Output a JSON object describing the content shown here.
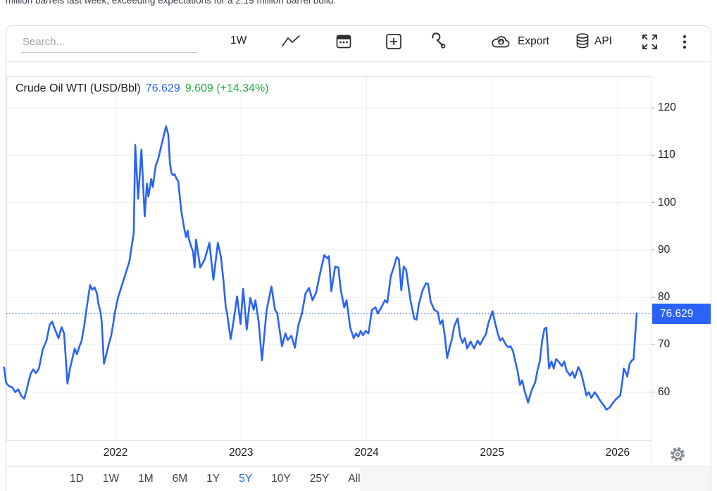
{
  "headline": {
    "text": "million barrels last week, exceeding expectations for a 2.19 million barrel build."
  },
  "toolbar": {
    "search_placeholder": "Search...",
    "interval_label": "1W",
    "export_label": "Export",
    "api_label": "API"
  },
  "chart_data": {
    "type": "line",
    "title": "Crude Oil WTI (USD/Bbl)",
    "price": "76.629",
    "change": "9.609",
    "change_pct": "(+14.34%)",
    "current_value": 76.629,
    "xlabel": "",
    "ylabel": "",
    "grid": true,
    "legend_position": "none",
    "x_ticks": [
      2022,
      2023,
      2024,
      2025,
      2026
    ],
    "y_ticks": [
      60,
      70,
      80,
      90,
      100,
      110,
      120
    ],
    "x_domain": [
      2021.13,
      2026.27
    ],
    "y_domain": [
      49.7,
      126.7
    ],
    "series": [
      {
        "name": "Crude Oil WTI",
        "points": [
          [
            2021.112,
            65.2
          ],
          [
            2021.128,
            62.0
          ],
          [
            2021.15,
            61.3
          ],
          [
            2021.178,
            61.0
          ],
          [
            2021.2,
            60.0
          ],
          [
            2021.225,
            60.6
          ],
          [
            2021.25,
            59.2
          ],
          [
            2021.272,
            58.6
          ],
          [
            2021.29,
            60.3
          ],
          [
            2021.305,
            62.0
          ],
          [
            2021.325,
            64.0
          ],
          [
            2021.345,
            64.8
          ],
          [
            2021.365,
            64.0
          ],
          [
            2021.39,
            65.0
          ],
          [
            2021.42,
            69.0
          ],
          [
            2021.45,
            70.9
          ],
          [
            2021.475,
            74.2
          ],
          [
            2021.495,
            74.9
          ],
          [
            2021.515,
            73.4
          ],
          [
            2021.545,
            71.4
          ],
          [
            2021.57,
            73.7
          ],
          [
            2021.59,
            72.4
          ],
          [
            2021.617,
            61.8
          ],
          [
            2021.637,
            65.0
          ],
          [
            2021.655,
            67.0
          ],
          [
            2021.675,
            69.2
          ],
          [
            2021.692,
            68.0
          ],
          [
            2021.71,
            69.5
          ],
          [
            2021.73,
            70.9
          ],
          [
            2021.75,
            73.9
          ],
          [
            2021.768,
            77.4
          ],
          [
            2021.787,
            80.8
          ],
          [
            2021.797,
            82.6
          ],
          [
            2021.815,
            81.6
          ],
          [
            2021.833,
            82.1
          ],
          [
            2021.852,
            80.8
          ],
          [
            2021.862,
            78.9
          ],
          [
            2021.88,
            76.9
          ],
          [
            2021.89,
            74.9
          ],
          [
            2021.908,
            66.0
          ],
          [
            2021.927,
            68.0
          ],
          [
            2021.945,
            70.0
          ],
          [
            2021.965,
            71.9
          ],
          [
            2021.983,
            74.7
          ],
          [
            2021.993,
            76.6
          ],
          [
            2022.02,
            80.0
          ],
          [
            2022.05,
            82.5
          ],
          [
            2022.08,
            85.0
          ],
          [
            2022.11,
            87.5
          ],
          [
            2022.13,
            91.0
          ],
          [
            2022.145,
            93.6
          ],
          [
            2022.157,
            112.2
          ],
          [
            2022.18,
            100.8
          ],
          [
            2022.206,
            111.2
          ],
          [
            2022.232,
            97.1
          ],
          [
            2022.25,
            104.0
          ],
          [
            2022.262,
            101.3
          ],
          [
            2022.285,
            105.0
          ],
          [
            2022.297,
            103.3
          ],
          [
            2022.32,
            107.8
          ],
          [
            2022.34,
            109.2
          ],
          [
            2022.36,
            111.5
          ],
          [
            2022.378,
            113.4
          ],
          [
            2022.402,
            116.1
          ],
          [
            2022.42,
            114.4
          ],
          [
            2022.433,
            108.5
          ],
          [
            2022.445,
            106.3
          ],
          [
            2022.458,
            105.8
          ],
          [
            2022.47,
            106.0
          ],
          [
            2022.487,
            105.0
          ],
          [
            2022.5,
            104.5
          ],
          [
            2022.518,
            99.6
          ],
          [
            2022.528,
            97.6
          ],
          [
            2022.547,
            94.6
          ],
          [
            2022.562,
            92.7
          ],
          [
            2022.575,
            94.1
          ],
          [
            2022.585,
            92.2
          ],
          [
            2022.603,
            90.7
          ],
          [
            2022.617,
            89.7
          ],
          [
            2022.63,
            86.3
          ],
          [
            2022.641,
            92.2
          ],
          [
            2022.675,
            86.3
          ],
          [
            2022.71,
            88.0
          ],
          [
            2022.748,
            91.5
          ],
          [
            2022.78,
            83.7
          ],
          [
            2022.815,
            91.5
          ],
          [
            2022.84,
            88.5
          ],
          [
            2022.86,
            83.5
          ],
          [
            2022.878,
            78.0
          ],
          [
            2022.89,
            76.5
          ],
          [
            2022.905,
            73.5
          ],
          [
            2022.917,
            71.2
          ],
          [
            2022.94,
            75.0
          ],
          [
            2022.968,
            80.2
          ],
          [
            2022.996,
            74.4
          ],
          [
            2023.017,
            81.8
          ],
          [
            2023.045,
            73.2
          ],
          [
            2023.073,
            79.9
          ],
          [
            2023.1,
            77.4
          ],
          [
            2023.114,
            79.4
          ],
          [
            2023.14,
            74.9
          ],
          [
            2023.167,
            66.7
          ],
          [
            2023.204,
            77.4
          ],
          [
            2023.242,
            82.3
          ],
          [
            2023.27,
            77.4
          ],
          [
            2023.288,
            76.7
          ],
          [
            2023.326,
            69.7
          ],
          [
            2023.354,
            72.4
          ],
          [
            2023.372,
            71.0
          ],
          [
            2023.401,
            71.9
          ],
          [
            2023.429,
            69.4
          ],
          [
            2023.457,
            74.2
          ],
          [
            2023.485,
            76.6
          ],
          [
            2023.513,
            80.8
          ],
          [
            2023.541,
            82.0
          ],
          [
            2023.57,
            79.4
          ],
          [
            2023.598,
            81.0
          ],
          [
            2023.635,
            85.7
          ],
          [
            2023.663,
            88.9
          ],
          [
            2023.691,
            88.2
          ],
          [
            2023.7,
            88.7
          ],
          [
            2023.719,
            81.3
          ],
          [
            2023.75,
            86.5
          ],
          [
            2023.775,
            86.3
          ],
          [
            2023.794,
            81.6
          ],
          [
            2023.822,
            77.9
          ],
          [
            2023.841,
            79.4
          ],
          [
            2023.869,
            73.7
          ],
          [
            2023.897,
            71.4
          ],
          [
            2023.916,
            72.4
          ],
          [
            2023.934,
            71.7
          ],
          [
            2023.953,
            72.9
          ],
          [
            2023.972,
            72.0
          ],
          [
            2023.991,
            72.9
          ],
          [
            2024.015,
            72.4
          ],
          [
            2024.043,
            77.4
          ],
          [
            2024.071,
            77.9
          ],
          [
            2024.09,
            76.6
          ],
          [
            2024.118,
            77.9
          ],
          [
            2024.146,
            79.4
          ],
          [
            2024.165,
            78.9
          ],
          [
            2024.193,
            84.5
          ],
          [
            2024.221,
            86.7
          ],
          [
            2024.24,
            88.5
          ],
          [
            2024.258,
            88.0
          ],
          [
            2024.277,
            81.5
          ],
          [
            2024.296,
            86.5
          ],
          [
            2024.315,
            85.8
          ],
          [
            2024.35,
            79.4
          ],
          [
            2024.38,
            75.5
          ],
          [
            2024.398,
            75.3
          ],
          [
            2024.416,
            78.5
          ],
          [
            2024.445,
            81.4
          ],
          [
            2024.474,
            83.0
          ],
          [
            2024.49,
            82.8
          ],
          [
            2024.511,
            79.1
          ],
          [
            2024.539,
            77.4
          ],
          [
            2024.567,
            76.9
          ],
          [
            2024.586,
            74.4
          ],
          [
            2024.605,
            75.2
          ],
          [
            2024.623,
            71.9
          ],
          [
            2024.642,
            67.2
          ],
          [
            2024.661,
            69.4
          ],
          [
            2024.68,
            71.2
          ],
          [
            2024.698,
            73.9
          ],
          [
            2024.726,
            75.6
          ],
          [
            2024.745,
            71.9
          ],
          [
            2024.764,
            70.4
          ],
          [
            2024.783,
            71.4
          ],
          [
            2024.801,
            69.2
          ],
          [
            2024.829,
            70.7
          ],
          [
            2024.857,
            69.2
          ],
          [
            2024.885,
            70.9
          ],
          [
            2024.904,
            70.0
          ],
          [
            2024.932,
            71.4
          ],
          [
            2024.951,
            72.2
          ],
          [
            2024.969,
            74.4
          ],
          [
            2024.988,
            75.9
          ],
          [
            2025.003,
            77.1
          ],
          [
            2025.026,
            74.4
          ],
          [
            2025.045,
            72.4
          ],
          [
            2025.063,
            70.9
          ],
          [
            2025.082,
            71.4
          ],
          [
            2025.11,
            70.0
          ],
          [
            2025.129,
            69.5
          ],
          [
            2025.147,
            69.7
          ],
          [
            2025.166,
            68.7
          ],
          [
            2025.185,
            66.5
          ],
          [
            2025.203,
            64.5
          ],
          [
            2025.222,
            61.5
          ],
          [
            2025.24,
            62.5
          ],
          [
            2025.259,
            60.3
          ],
          [
            2025.287,
            57.8
          ],
          [
            2025.306,
            59.6
          ],
          [
            2025.324,
            61.0
          ],
          [
            2025.343,
            62.0
          ],
          [
            2025.361,
            64.5
          ],
          [
            2025.38,
            66.5
          ],
          [
            2025.399,
            70.9
          ],
          [
            2025.417,
            73.4
          ],
          [
            2025.432,
            73.6
          ],
          [
            2025.454,
            65.0
          ],
          [
            2025.473,
            66.5
          ],
          [
            2025.491,
            65.0
          ],
          [
            2025.51,
            67.0
          ],
          [
            2025.528,
            66.5
          ],
          [
            2025.556,
            65.5
          ],
          [
            2025.575,
            66.5
          ],
          [
            2025.594,
            64.5
          ],
          [
            2025.622,
            63.5
          ],
          [
            2025.64,
            64.3
          ],
          [
            2025.659,
            63.0
          ],
          [
            2025.687,
            65.3
          ],
          [
            2025.706,
            64.3
          ],
          [
            2025.724,
            62.5
          ],
          [
            2025.752,
            59.3
          ],
          [
            2025.771,
            60.0
          ],
          [
            2025.79,
            58.8
          ],
          [
            2025.818,
            60.0
          ],
          [
            2025.836,
            59.3
          ],
          [
            2025.864,
            58.1
          ],
          [
            2025.893,
            57.1
          ],
          [
            2025.911,
            56.3
          ],
          [
            2025.939,
            56.8
          ],
          [
            2025.958,
            57.6
          ],
          [
            2025.986,
            58.5
          ],
          [
            2026.021,
            59.3
          ],
          [
            2026.039,
            62.5
          ],
          [
            2026.049,
            65.0
          ],
          [
            2026.067,
            64.0
          ],
          [
            2026.077,
            63.3
          ],
          [
            2026.096,
            66.0
          ],
          [
            2026.114,
            66.7
          ],
          [
            2026.127,
            66.9
          ],
          [
            2026.152,
            76.629
          ]
        ]
      }
    ]
  },
  "footer": {
    "ranges": [
      "1D",
      "1W",
      "1M",
      "6M",
      "1Y",
      "5Y",
      "10Y",
      "25Y",
      "All"
    ],
    "selected": "5Y"
  },
  "colors": {
    "accent_blue": "#2A63F5",
    "positive_green": "#23AD3D",
    "line_blue": "#2A63F5",
    "price_label_bg": "#2A63F5",
    "grid": "#ECECEC",
    "plot_border": "#E4E4E4",
    "footer_bg": "#F4F6F8"
  }
}
